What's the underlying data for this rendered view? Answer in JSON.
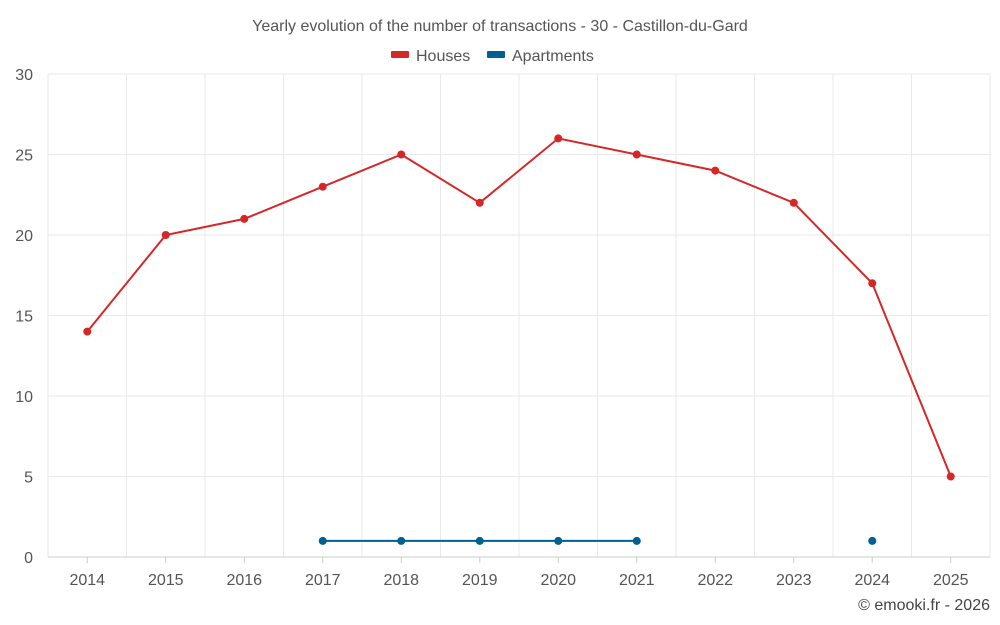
{
  "chart_data": {
    "type": "line",
    "title": "Yearly evolution of the number of transactions - 30 - Castillon-du-Gard",
    "categories": [
      "2014",
      "2015",
      "2016",
      "2017",
      "2018",
      "2019",
      "2020",
      "2021",
      "2022",
      "2023",
      "2024",
      "2025"
    ],
    "series": [
      {
        "name": "Houses",
        "color": "#d62728",
        "values": [
          14,
          20,
          21,
          23,
          25,
          22,
          26,
          25,
          24,
          22,
          17,
          5
        ]
      },
      {
        "name": "Apartments",
        "color": "#005f93",
        "values": [
          null,
          null,
          null,
          1,
          1,
          1,
          1,
          1,
          null,
          null,
          1,
          null
        ]
      }
    ],
    "ylim": [
      0,
      30
    ],
    "yticks": [
      0,
      5,
      10,
      15,
      20,
      25,
      30
    ],
    "xlabel": "",
    "ylabel": "",
    "grid": true,
    "legend_position": "top-center"
  },
  "credit": "© emooki.fr - 2026"
}
